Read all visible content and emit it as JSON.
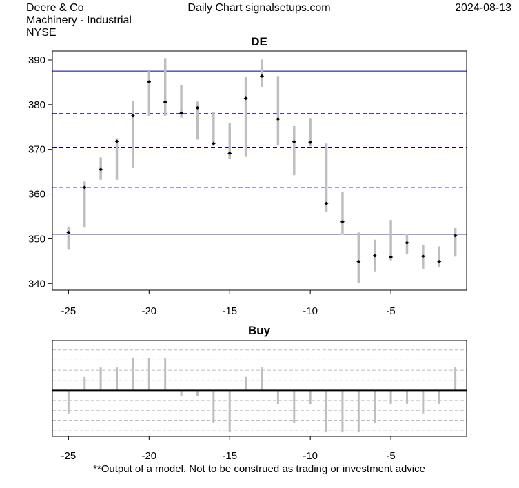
{
  "header": {
    "company": "Deere & Co",
    "sector": "Machinery - Industrial",
    "exchange": "NYSE",
    "source": "Daily Chart signalsetups.com",
    "date": "2024-08-13"
  },
  "footer": {
    "disclaimer": "**Output of a model. Not to be construed as trading or investment advice"
  },
  "colors": {
    "bar": "#bebebe",
    "level_line": "#00008b",
    "zero_line": "#000000",
    "grid": "#bebebe"
  },
  "chart_data": [
    {
      "type": "range_bar",
      "title": "DE",
      "xlabel": "",
      "ylabel": "",
      "xlim": [
        -26,
        -0.3
      ],
      "ylim": [
        338.5,
        392
      ],
      "x_ticks": [
        -25,
        -20,
        -15,
        -10,
        -5
      ],
      "y_ticks": [
        340,
        350,
        360,
        370,
        380,
        390
      ],
      "horizontal_solid": [
        387.5,
        351
      ],
      "horizontal_dashed": [
        378,
        370.5,
        361.5
      ],
      "bars": [
        {
          "x": -25,
          "low": 347.7,
          "high": 352.7,
          "close": 351.4
        },
        {
          "x": -24,
          "low": 352.5,
          "high": 362.8,
          "close": 361.5
        },
        {
          "x": -23,
          "low": 363.2,
          "high": 368.2,
          "close": 365.5
        },
        {
          "x": -22,
          "low": 363.2,
          "high": 372.5,
          "close": 371.8
        },
        {
          "x": -21,
          "low": 365.8,
          "high": 380.8,
          "close": 377.5
        },
        {
          "x": -20,
          "low": 377.5,
          "high": 387.5,
          "close": 385.1
        },
        {
          "x": -19,
          "low": 377.5,
          "high": 390.4,
          "close": 380.6
        },
        {
          "x": -18,
          "low": 377.1,
          "high": 384.4,
          "close": 378.1
        },
        {
          "x": -17,
          "low": 372.2,
          "high": 380.7,
          "close": 379.3
        },
        {
          "x": -16,
          "low": 370.8,
          "high": 378.4,
          "close": 371.3
        },
        {
          "x": -15,
          "low": 367.8,
          "high": 375.9,
          "close": 369.1
        },
        {
          "x": -14,
          "low": 368.3,
          "high": 386.3,
          "close": 381.4
        },
        {
          "x": -13,
          "low": 384.0,
          "high": 390.1,
          "close": 386.4
        },
        {
          "x": -12,
          "low": 370.9,
          "high": 386.4,
          "close": 376.8
        },
        {
          "x": -11,
          "low": 364.2,
          "high": 375.2,
          "close": 371.7
        },
        {
          "x": -10,
          "low": 370.7,
          "high": 377.0,
          "close": 371.6
        },
        {
          "x": -9,
          "low": 356.1,
          "high": 371.3,
          "close": 357.9
        },
        {
          "x": -8,
          "low": 350.9,
          "high": 360.5,
          "close": 353.8
        },
        {
          "x": -7,
          "low": 340.2,
          "high": 351.4,
          "close": 344.9
        },
        {
          "x": -6,
          "low": 342.7,
          "high": 349.8,
          "close": 346.2
        },
        {
          "x": -5,
          "low": 345.2,
          "high": 354.2,
          "close": 345.9
        },
        {
          "x": -4,
          "low": 346.5,
          "high": 351.0,
          "close": 349.1
        },
        {
          "x": -3,
          "low": 343.3,
          "high": 348.7,
          "close": 346.1
        },
        {
          "x": -2,
          "low": 343.7,
          "high": 348.3,
          "close": 344.9
        },
        {
          "x": -1,
          "low": 346.0,
          "high": 352.4,
          "close": 350.7
        }
      ]
    },
    {
      "type": "bar",
      "title": "Buy",
      "xlabel": "",
      "ylabel": "",
      "xlim": [
        -26,
        -0.3
      ],
      "ylim": [
        -3.4,
        3.7
      ],
      "x_ticks": [
        -25,
        -20,
        -15,
        -10,
        -5
      ],
      "grid_levels": [
        3,
        2.25,
        1.5,
        0.75,
        -0.75,
        -1.5,
        -2.25,
        -3
      ],
      "x": [
        -25,
        -24,
        -23,
        -22,
        -21,
        -20,
        -19,
        -18,
        -17,
        -16,
        -15,
        -14,
        -13,
        -12,
        -11,
        -10,
        -9,
        -8,
        -7,
        -6,
        -5,
        -4,
        -3,
        -2,
        -1
      ],
      "values": [
        -1.7,
        1.0,
        1.7,
        1.7,
        2.4,
        2.4,
        2.4,
        -0.4,
        -0.4,
        -2.4,
        -3.1,
        1.0,
        1.7,
        -1.0,
        -2.4,
        -1.0,
        -3.1,
        -3.1,
        -3.1,
        -2.4,
        -1.0,
        -1.0,
        -1.7,
        -1.0,
        1.7
      ]
    }
  ]
}
